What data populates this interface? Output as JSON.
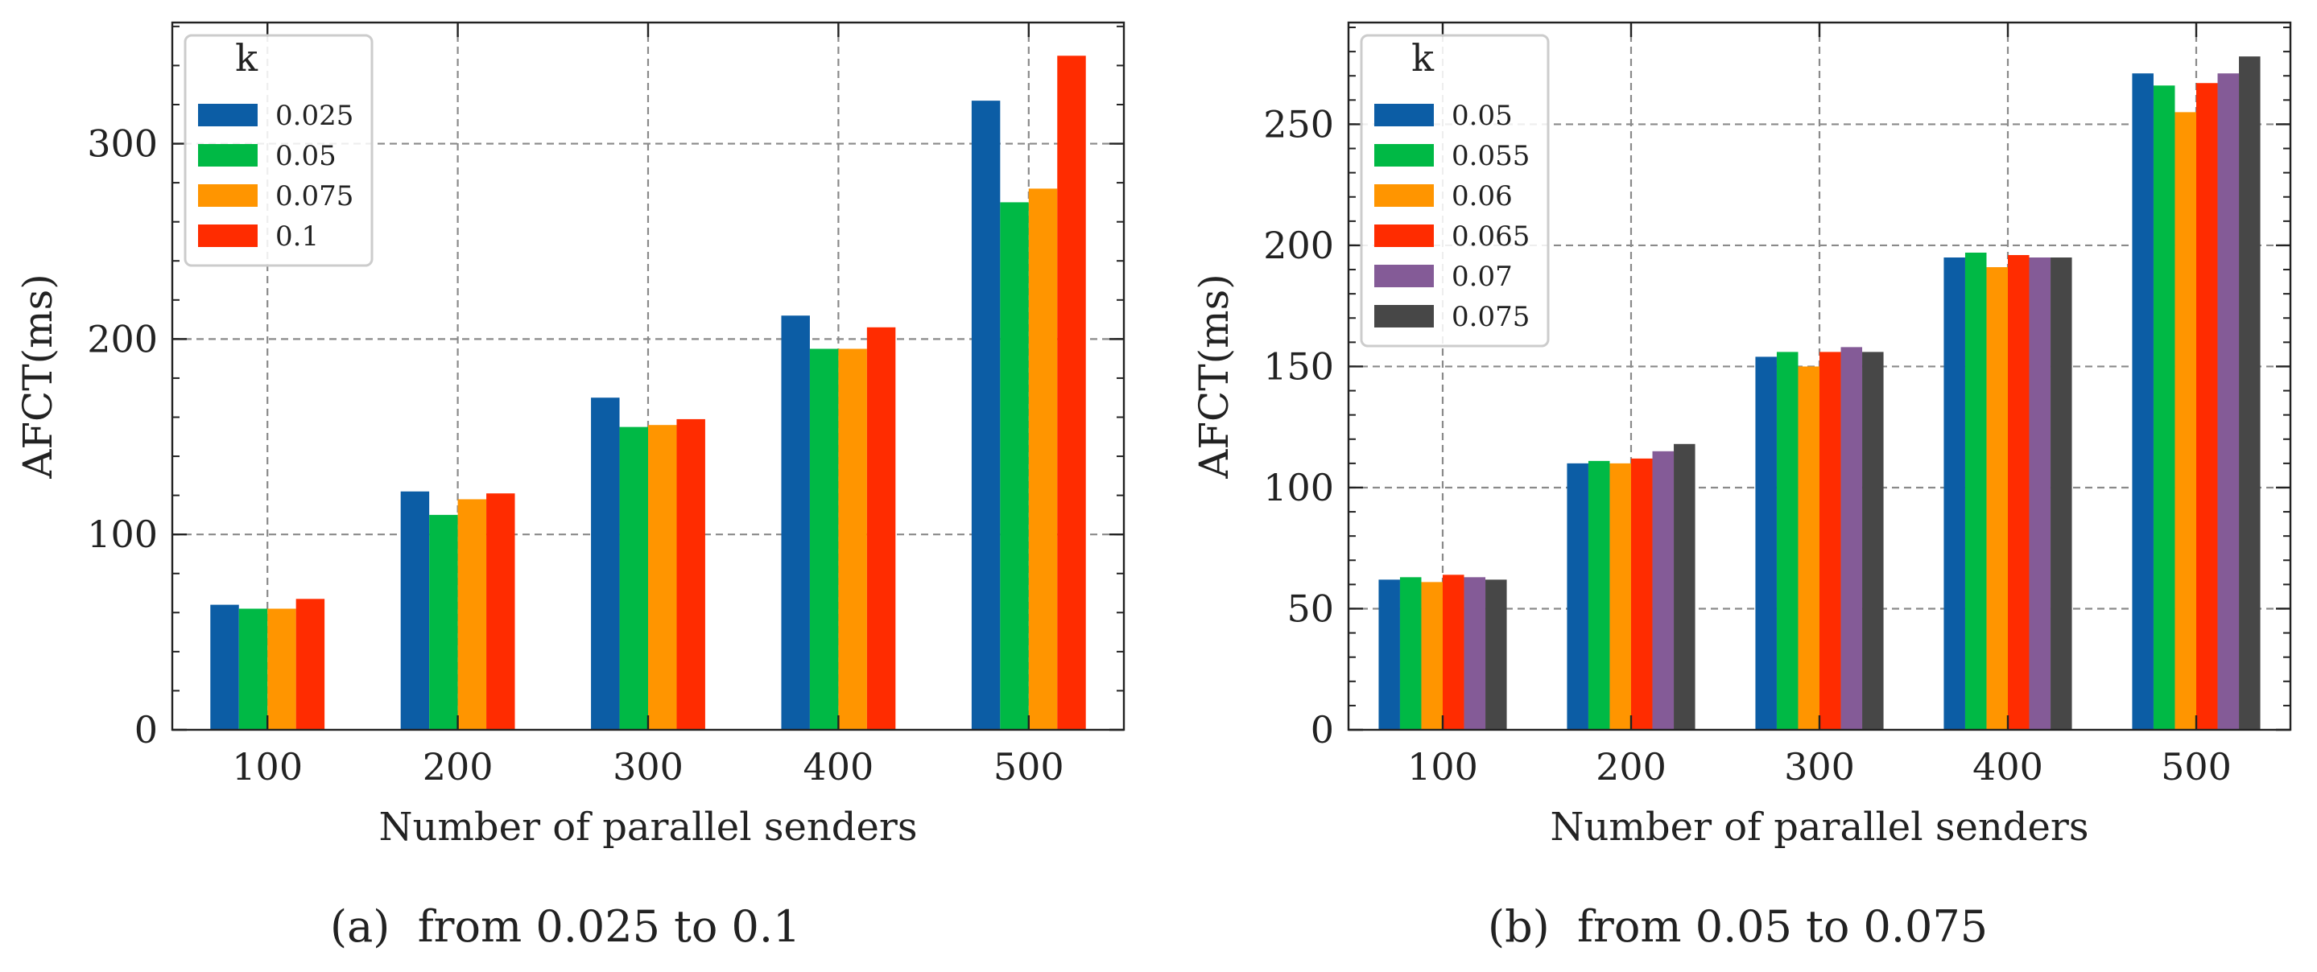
{
  "chart_data": [
    {
      "type": "bar",
      "caption_label": "(a)",
      "caption_text": "from 0.025 to 0.1",
      "xlabel": "Number of parallel senders",
      "ylabel": "AFCT(ms)",
      "categories": [
        "100",
        "200",
        "300",
        "400",
        "500"
      ],
      "ylim": [
        0,
        362
      ],
      "yticks": [
        0,
        100,
        200,
        300
      ],
      "grid": true,
      "legend_title": "k",
      "legend_position": "top-left",
      "series": [
        {
          "name": "0.025",
          "color": "#0C5DA5",
          "values": [
            64,
            122,
            170,
            212,
            322
          ]
        },
        {
          "name": "0.05",
          "color": "#00B945",
          "values": [
            62,
            110,
            155,
            195,
            270
          ]
        },
        {
          "name": "0.075",
          "color": "#FF9500",
          "values": [
            62,
            118,
            156,
            195,
            277
          ]
        },
        {
          "name": "0.1",
          "color": "#FF2C00",
          "values": [
            67,
            121,
            159,
            206,
            345
          ]
        }
      ]
    },
    {
      "type": "bar",
      "caption_label": "(b)",
      "caption_text": "from 0.05 to 0.075",
      "xlabel": "Number of parallel senders",
      "ylabel": "AFCT(ms)",
      "categories": [
        "100",
        "200",
        "300",
        "400",
        "500"
      ],
      "ylim": [
        0,
        292
      ],
      "yticks": [
        0,
        50,
        100,
        150,
        200,
        250
      ],
      "grid": true,
      "legend_title": "k",
      "legend_position": "top-left",
      "series": [
        {
          "name": "0.05",
          "color": "#0C5DA5",
          "values": [
            62,
            110,
            154,
            195,
            271
          ]
        },
        {
          "name": "0.055",
          "color": "#00B945",
          "values": [
            63,
            111,
            156,
            197,
            266
          ]
        },
        {
          "name": "0.06",
          "color": "#FF9500",
          "values": [
            61,
            110,
            150,
            191,
            255
          ]
        },
        {
          "name": "0.065",
          "color": "#FF2C00",
          "values": [
            64,
            112,
            156,
            196,
            267
          ]
        },
        {
          "name": "0.07",
          "color": "#845B97",
          "values": [
            63,
            115,
            158,
            195,
            271
          ]
        },
        {
          "name": "0.075",
          "color": "#474747",
          "values": [
            62,
            118,
            156,
            195,
            278
          ]
        }
      ]
    }
  ]
}
